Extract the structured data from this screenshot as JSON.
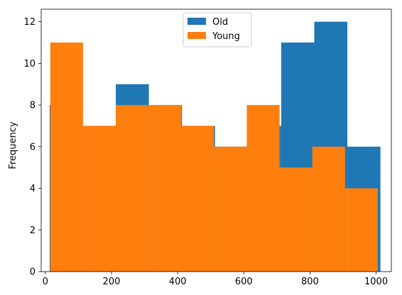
{
  "chart_data": {
    "type": "bar",
    "title": "",
    "xlabel": "",
    "ylabel": "Frequency",
    "xlim": [
      -12.5,
      1046
    ],
    "ylim": [
      0,
      12.6
    ],
    "x_ticks": [
      0,
      200,
      400,
      600,
      800,
      1000
    ],
    "y_ticks": [
      0,
      2,
      4,
      6,
      8,
      10,
      12
    ],
    "grid": false,
    "legend": {
      "placement": "top-center"
    },
    "series": [
      {
        "name": "Old",
        "color": "#1f77b4",
        "bins": [
          {
            "x0": 13,
            "x1": 113,
            "count": 8
          },
          {
            "x0": 113,
            "x1": 213,
            "count": 7
          },
          {
            "x0": 213,
            "x1": 313,
            "count": 9
          },
          {
            "x0": 313,
            "x1": 413,
            "count": 8
          },
          {
            "x0": 413,
            "x1": 513,
            "count": 7
          },
          {
            "x0": 513,
            "x1": 613,
            "count": 6
          },
          {
            "x0": 613,
            "x1": 713,
            "count": 7
          },
          {
            "x0": 713,
            "x1": 813,
            "count": 11
          },
          {
            "x0": 813,
            "x1": 913,
            "count": 12
          },
          {
            "x0": 913,
            "x1": 1013,
            "count": 6
          }
        ]
      },
      {
        "name": "Young",
        "color": "#ff7f0e",
        "bins": [
          {
            "x0": 15,
            "x1": 114,
            "count": 11
          },
          {
            "x0": 114,
            "x1": 213,
            "count": 7
          },
          {
            "x0": 213,
            "x1": 312,
            "count": 8
          },
          {
            "x0": 312,
            "x1": 411,
            "count": 8
          },
          {
            "x0": 411,
            "x1": 510,
            "count": 7
          },
          {
            "x0": 510,
            "x1": 609,
            "count": 6
          },
          {
            "x0": 609,
            "x1": 708,
            "count": 8
          },
          {
            "x0": 708,
            "x1": 807,
            "count": 5
          },
          {
            "x0": 807,
            "x1": 906,
            "count": 6
          },
          {
            "x0": 906,
            "x1": 1005,
            "count": 4
          }
        ]
      }
    ]
  }
}
